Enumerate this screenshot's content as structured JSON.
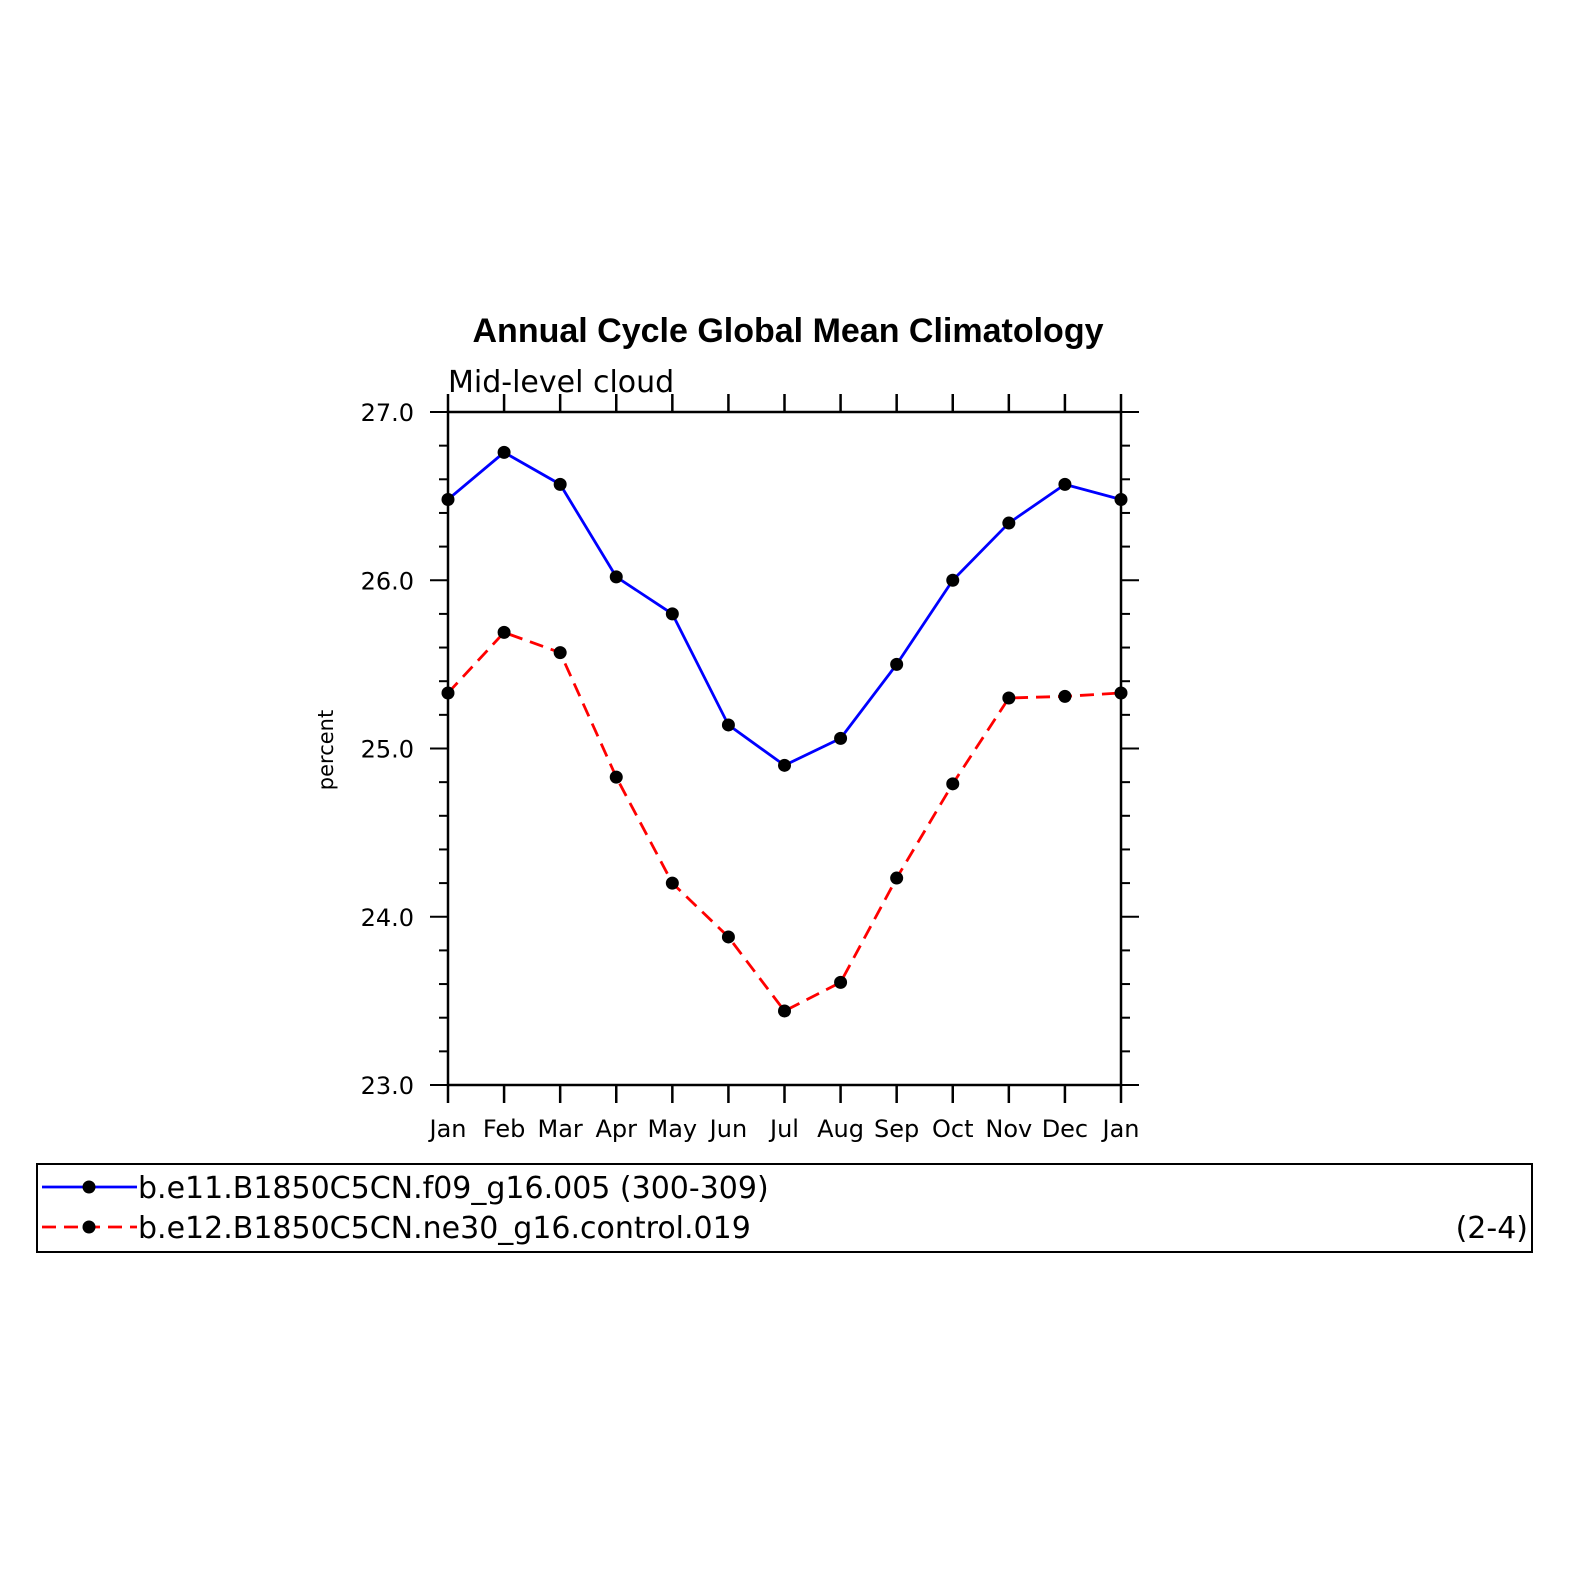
{
  "chart_data": {
    "type": "line",
    "title": "Annual Cycle Global Mean Climatology",
    "subtitle": "Mid-level cloud",
    "ylabel": "percent",
    "xlabel": "",
    "categories": [
      "Jan",
      "Feb",
      "Mar",
      "Apr",
      "May",
      "Jun",
      "Jul",
      "Aug",
      "Sep",
      "Oct",
      "Nov",
      "Dec",
      "Jan"
    ],
    "ylim": [
      23.0,
      27.0
    ],
    "yticks": [
      "23.0",
      "24.0",
      "25.0",
      "26.0",
      "27.0"
    ],
    "grid": false,
    "legend_placement": "bottom",
    "series": [
      {
        "name": "b.e11.B1850C5CN.f09_g16.005 (300-309)",
        "note": "",
        "color": "#0000ff",
        "dash": "solid",
        "values": [
          26.48,
          26.76,
          26.57,
          26.02,
          25.8,
          25.14,
          24.9,
          25.06,
          25.5,
          26.0,
          26.34,
          26.57,
          26.48
        ]
      },
      {
        "name": "b.e12.B1850C5CN.ne30_g16.control.019",
        "note": "(2-4)",
        "color": "#ff0000",
        "dash": "dashed",
        "values": [
          25.33,
          25.69,
          25.57,
          24.83,
          24.2,
          23.88,
          23.44,
          23.61,
          24.23,
          24.79,
          25.3,
          25.31,
          25.33
        ]
      }
    ]
  }
}
